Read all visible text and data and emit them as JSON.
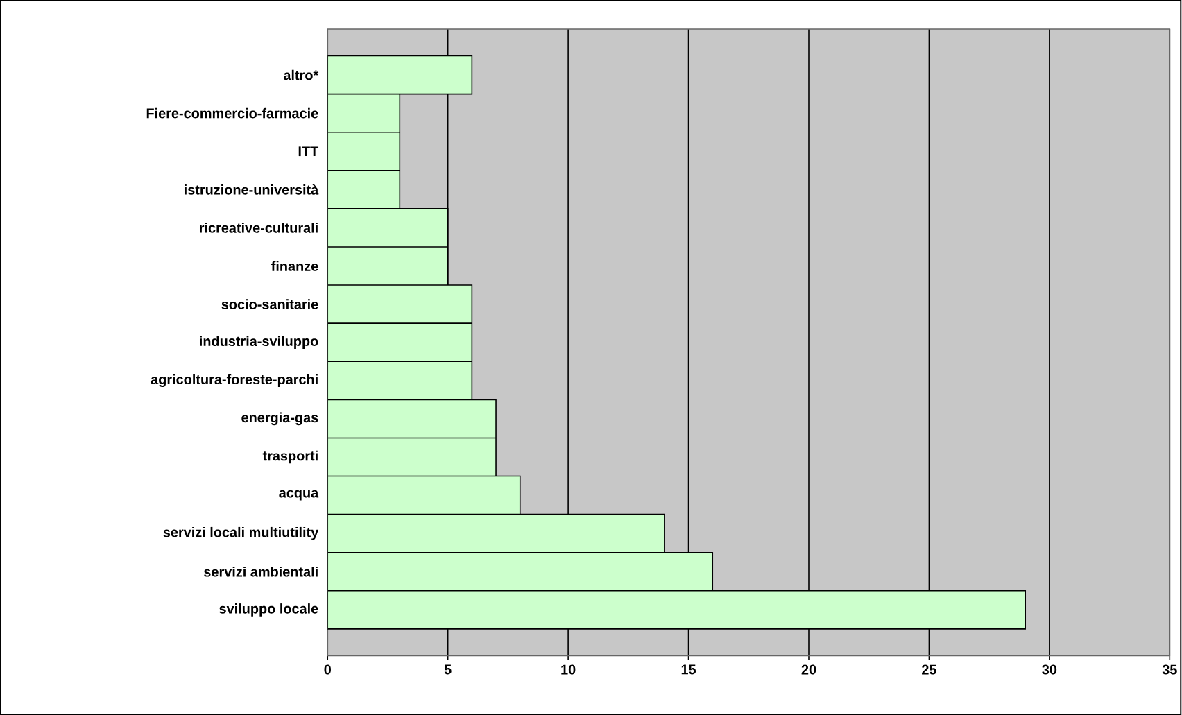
{
  "chart_data": {
    "type": "bar",
    "orientation": "horizontal",
    "categories": [
      "altro*",
      "Fiere-commercio-farmacie",
      "ITT",
      "istruzione-università",
      "ricreative-culturali",
      "finanze",
      "socio-sanitarie",
      "industria-sviluppo",
      "agricoltura-foreste-parchi",
      "energia-gas",
      "trasporti",
      "acqua",
      "servizi locali multiutility",
      "servizi ambientali",
      "sviluppo locale"
    ],
    "values": [
      6,
      3,
      3,
      3,
      5,
      5,
      6,
      6,
      6,
      7,
      7,
      8,
      14,
      16,
      29
    ],
    "color": "#ccffcc",
    "xlim": [
      0,
      35
    ],
    "xticks": [
      0,
      5,
      10,
      15,
      20,
      25,
      30,
      35
    ],
    "grid": "x"
  }
}
